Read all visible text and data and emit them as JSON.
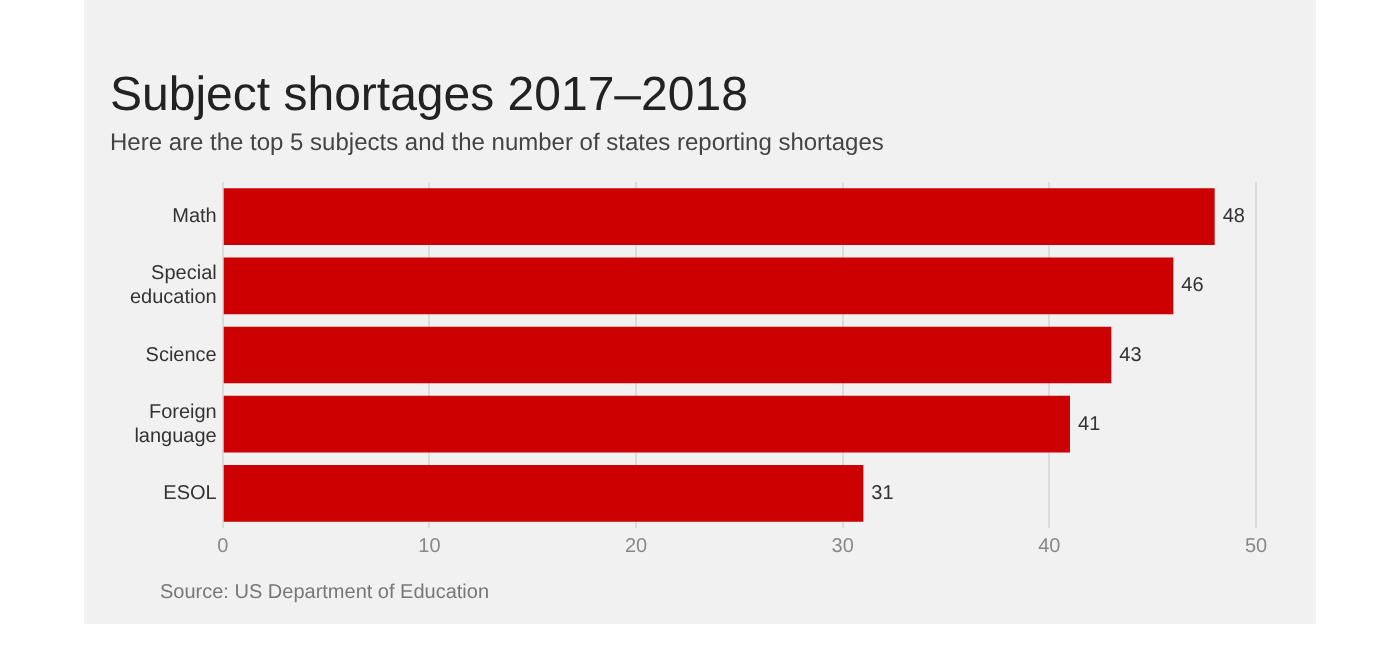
{
  "chart_data": {
    "type": "bar",
    "orientation": "horizontal",
    "title": "Subject shortages 2017–2018",
    "subtitle": "Here are the top 5 subjects and the number of states reporting shortages",
    "categories": [
      "Math",
      "Special education",
      "Science",
      "Foreign language",
      "ESOL"
    ],
    "values": [
      48,
      46,
      43,
      41,
      31
    ],
    "color": "#cc0000",
    "data_labels": true,
    "xlim": [
      0,
      50
    ],
    "xticks": [
      0,
      10,
      20,
      30,
      40,
      50
    ],
    "grid": "x",
    "annotations": [
      "Source: US Department of Education"
    ]
  }
}
